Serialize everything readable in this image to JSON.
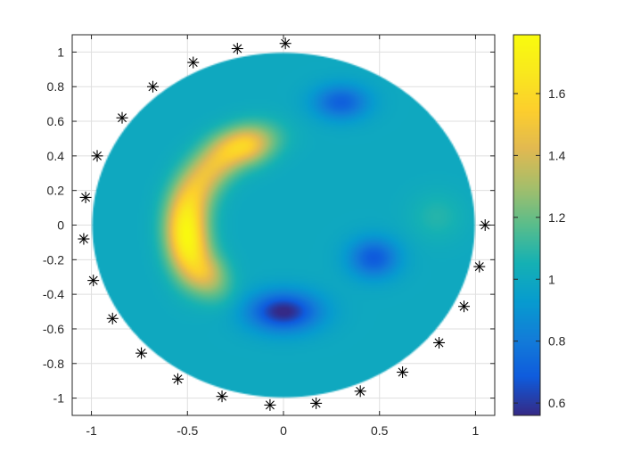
{
  "chart_data": {
    "type": "heatmap",
    "title": "",
    "xlabel": "",
    "ylabel": "",
    "xlim": [
      -1.1,
      1.1
    ],
    "ylim": [
      -1.1,
      1.1
    ],
    "grid": true,
    "x_ticks": [
      -1,
      -0.5,
      0,
      0.5,
      1
    ],
    "x_tick_labels": [
      "-1",
      "-0.5",
      "0",
      "0.5",
      "1"
    ],
    "y_ticks": [
      1,
      0.8,
      0.6,
      0.4,
      0.2,
      0,
      -0.2,
      -0.4,
      -0.6,
      -0.8,
      -1
    ],
    "y_tick_labels": [
      "1",
      "0.8",
      "0.6",
      "0.4",
      "0.2",
      "0",
      "-0.2",
      "-0.4",
      "-0.6",
      "-0.8",
      "-1"
    ],
    "domain": {
      "shape": "disk",
      "center": [
        0,
        0
      ],
      "radius": 1
    },
    "field": {
      "background": 1.0,
      "blobs": [
        {
          "type": "arc",
          "cx": 0,
          "cy": 0,
          "r": 0.5,
          "theta_start_deg": 115,
          "theta_end_deg": 210,
          "width": 0.08,
          "amp": 0.48
        },
        {
          "type": "gauss",
          "x": -0.51,
          "y": -0.06,
          "sx": 0.07,
          "sy": 0.16,
          "amp": 0.3
        },
        {
          "type": "gauss",
          "x": -0.24,
          "y": 0.46,
          "sx": 0.1,
          "sy": 0.07,
          "amp": 0.12
        },
        {
          "type": "gauss",
          "x": 0.0,
          "y": -0.5,
          "sx": 0.13,
          "sy": 0.08,
          "amp": -0.45
        },
        {
          "type": "gauss",
          "x": 0.47,
          "y": -0.19,
          "sx": 0.09,
          "sy": 0.08,
          "amp": -0.32
        },
        {
          "type": "gauss",
          "x": 0.3,
          "y": 0.71,
          "sx": 0.1,
          "sy": 0.07,
          "amp": -0.3
        },
        {
          "type": "gauss",
          "x": 0.8,
          "y": 0.05,
          "sx": 0.1,
          "sy": 0.1,
          "amp": 0.08
        }
      ]
    },
    "colorbar": {
      "colormap": "parula",
      "clim": [
        0.56,
        1.79
      ],
      "ticks": [
        0.6,
        0.8,
        1,
        1.2,
        1.4,
        1.6
      ],
      "tick_labels": [
        "0.6",
        "0.8",
        "1",
        "1.2",
        "1.4",
        "1.6"
      ]
    },
    "electrodes": {
      "marker": "asterisk",
      "color": "#000000",
      "points": [
        [
          0.01,
          1.05
        ],
        [
          -0.24,
          1.02
        ],
        [
          -0.47,
          0.94
        ],
        [
          -0.68,
          0.8
        ],
        [
          -0.84,
          0.62
        ],
        [
          -0.97,
          0.4
        ],
        [
          -1.03,
          0.16
        ],
        [
          -1.04,
          -0.08
        ],
        [
          -0.99,
          -0.32
        ],
        [
          -0.89,
          -0.54
        ],
        [
          -0.74,
          -0.74
        ],
        [
          -0.55,
          -0.89
        ],
        [
          -0.32,
          -0.99
        ],
        [
          -0.07,
          -1.04
        ],
        [
          0.17,
          -1.03
        ],
        [
          0.4,
          -0.96
        ],
        [
          0.62,
          -0.85
        ],
        [
          0.81,
          -0.68
        ],
        [
          0.94,
          -0.47
        ],
        [
          1.02,
          -0.24
        ],
        [
          1.05,
          0.0
        ]
      ]
    },
    "colors": {
      "axis": "#262626",
      "grid": "#dfdfdf"
    }
  }
}
